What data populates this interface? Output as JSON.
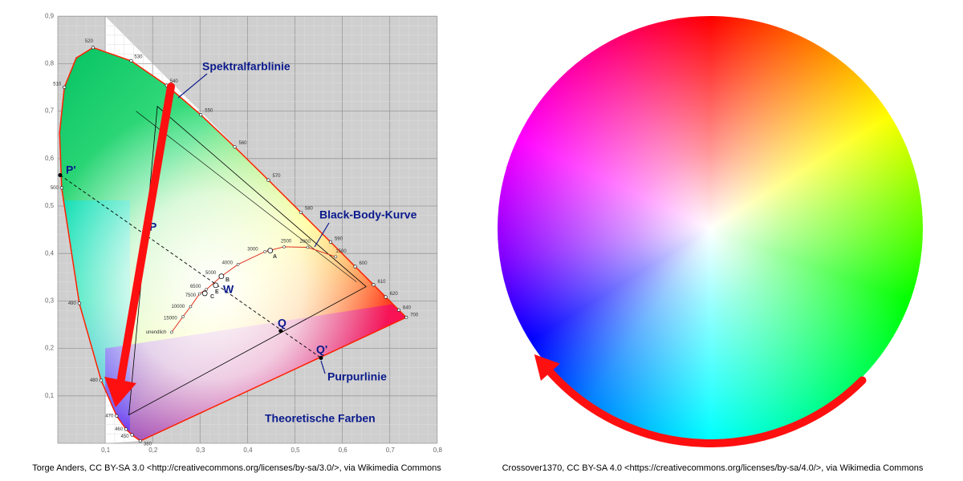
{
  "left_figure": {
    "y_ticks": [
      "0,9",
      "0,8",
      "0,7",
      "0,6",
      "0,5",
      "0,4",
      "0,3",
      "0,2",
      "0,1"
    ],
    "x_ticks": [
      "0,1",
      "0,2",
      "0,3",
      "0,4",
      "0,5",
      "0,6",
      "0,7",
      "0,8"
    ],
    "wavelengths": [
      "380",
      "450",
      "460",
      "470",
      "480",
      "490",
      "500",
      "510",
      "520",
      "530",
      "540",
      "550",
      "560",
      "570",
      "580",
      "590",
      "600",
      "610",
      "620",
      "640",
      "700"
    ],
    "temperatures": [
      "unendlich",
      "15000",
      "10000",
      "7500",
      "6500",
      "5000",
      "4000",
      "3000",
      "2500",
      "2000",
      "1500"
    ],
    "labels": {
      "spectral_line": "Spektralfarblinie",
      "black_body": "Black-Body-Kurve",
      "purple_line": "Purpurlinie",
      "theoretical": "Theoretische Farben"
    },
    "points": {
      "p_prime": "P'",
      "p": "P",
      "q": "Q",
      "q_prime": "Q'",
      "w": "W",
      "a": "A",
      "b": "B",
      "c": "C",
      "e": "E"
    },
    "caption": "Torge Anders, CC BY-SA 3.0 <http://creativecommons.org/licenses/by-sa/3.0/>, via Wikimedia Commons"
  },
  "right_figure": {
    "caption": "Crossover1370, CC BY-SA 4.0 <https://creativecommons.org/licenses/by-sa/4.0/>, via Wikimedia Commons"
  }
}
